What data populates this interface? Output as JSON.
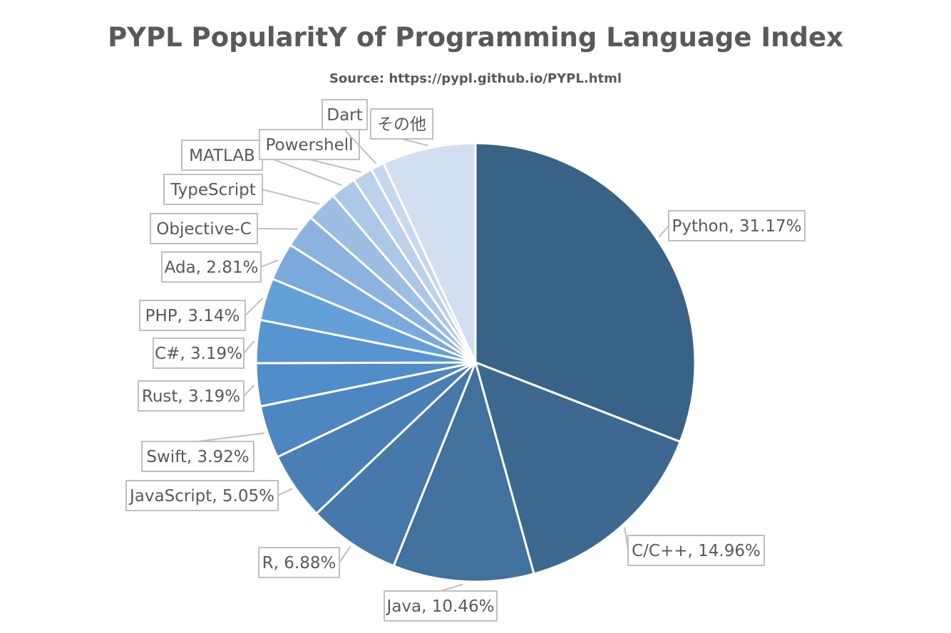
{
  "chart_data": {
    "type": "pie",
    "title": "PYPL PopularitY of Programming Language Index",
    "subtitle": "Source: https://pypl.github.io/PYPL.html",
    "slices": [
      {
        "label": "Python, 31.17%",
        "name": "Python",
        "value": 31.17,
        "color": "#386387"
      },
      {
        "label": "C/C++, 14.96%",
        "name": "C/C++",
        "value": 14.96,
        "color": "#3d6990"
      },
      {
        "label": "Java, 10.46%",
        "name": "Java",
        "value": 10.46,
        "color": "#41719d"
      },
      {
        "label": "R, 6.88%",
        "name": "R",
        "value": 6.88,
        "color": "#4678aa"
      },
      {
        "label": "JavaScript, 5.05%",
        "name": "JavaScript",
        "value": 5.05,
        "color": "#4a7fb5"
      },
      {
        "label": "Swift, 3.92%",
        "name": "Swift",
        "value": 3.92,
        "color": "#4d86c0"
      },
      {
        "label": "Rust, 3.19%",
        "name": "Rust",
        "value": 3.19,
        "color": "#518dc8"
      },
      {
        "label": "C#, 3.19%",
        "name": "C#",
        "value": 3.19,
        "color": "#5695d0"
      },
      {
        "label": "PHP, 3.14%",
        "name": "PHP",
        "value": 3.14,
        "color": "#64a0d8"
      },
      {
        "label": "Ada, 2.81%",
        "name": "Ada",
        "value": 2.81,
        "color": "#7aa9dc"
      },
      {
        "label": "Objective-C",
        "name": "Objective-C",
        "value": 2.5,
        "color": "#8cb3df"
      },
      {
        "label": "TypeScript",
        "name": "TypeScript",
        "value": 2.3,
        "color": "#9dbde2"
      },
      {
        "label": "MATLAB",
        "name": "MATLAB",
        "value": 1.9,
        "color": "#adc7e6"
      },
      {
        "label": "Powershell",
        "name": "Powershell",
        "value": 1.5,
        "color": "#bcd1ea"
      },
      {
        "label": "Dart",
        "name": "Dart",
        "value": 1.0,
        "color": "#c6d8ed"
      },
      {
        "label": "その他",
        "name": "その他",
        "value": 6.94,
        "color": "#d2dff0"
      }
    ]
  }
}
